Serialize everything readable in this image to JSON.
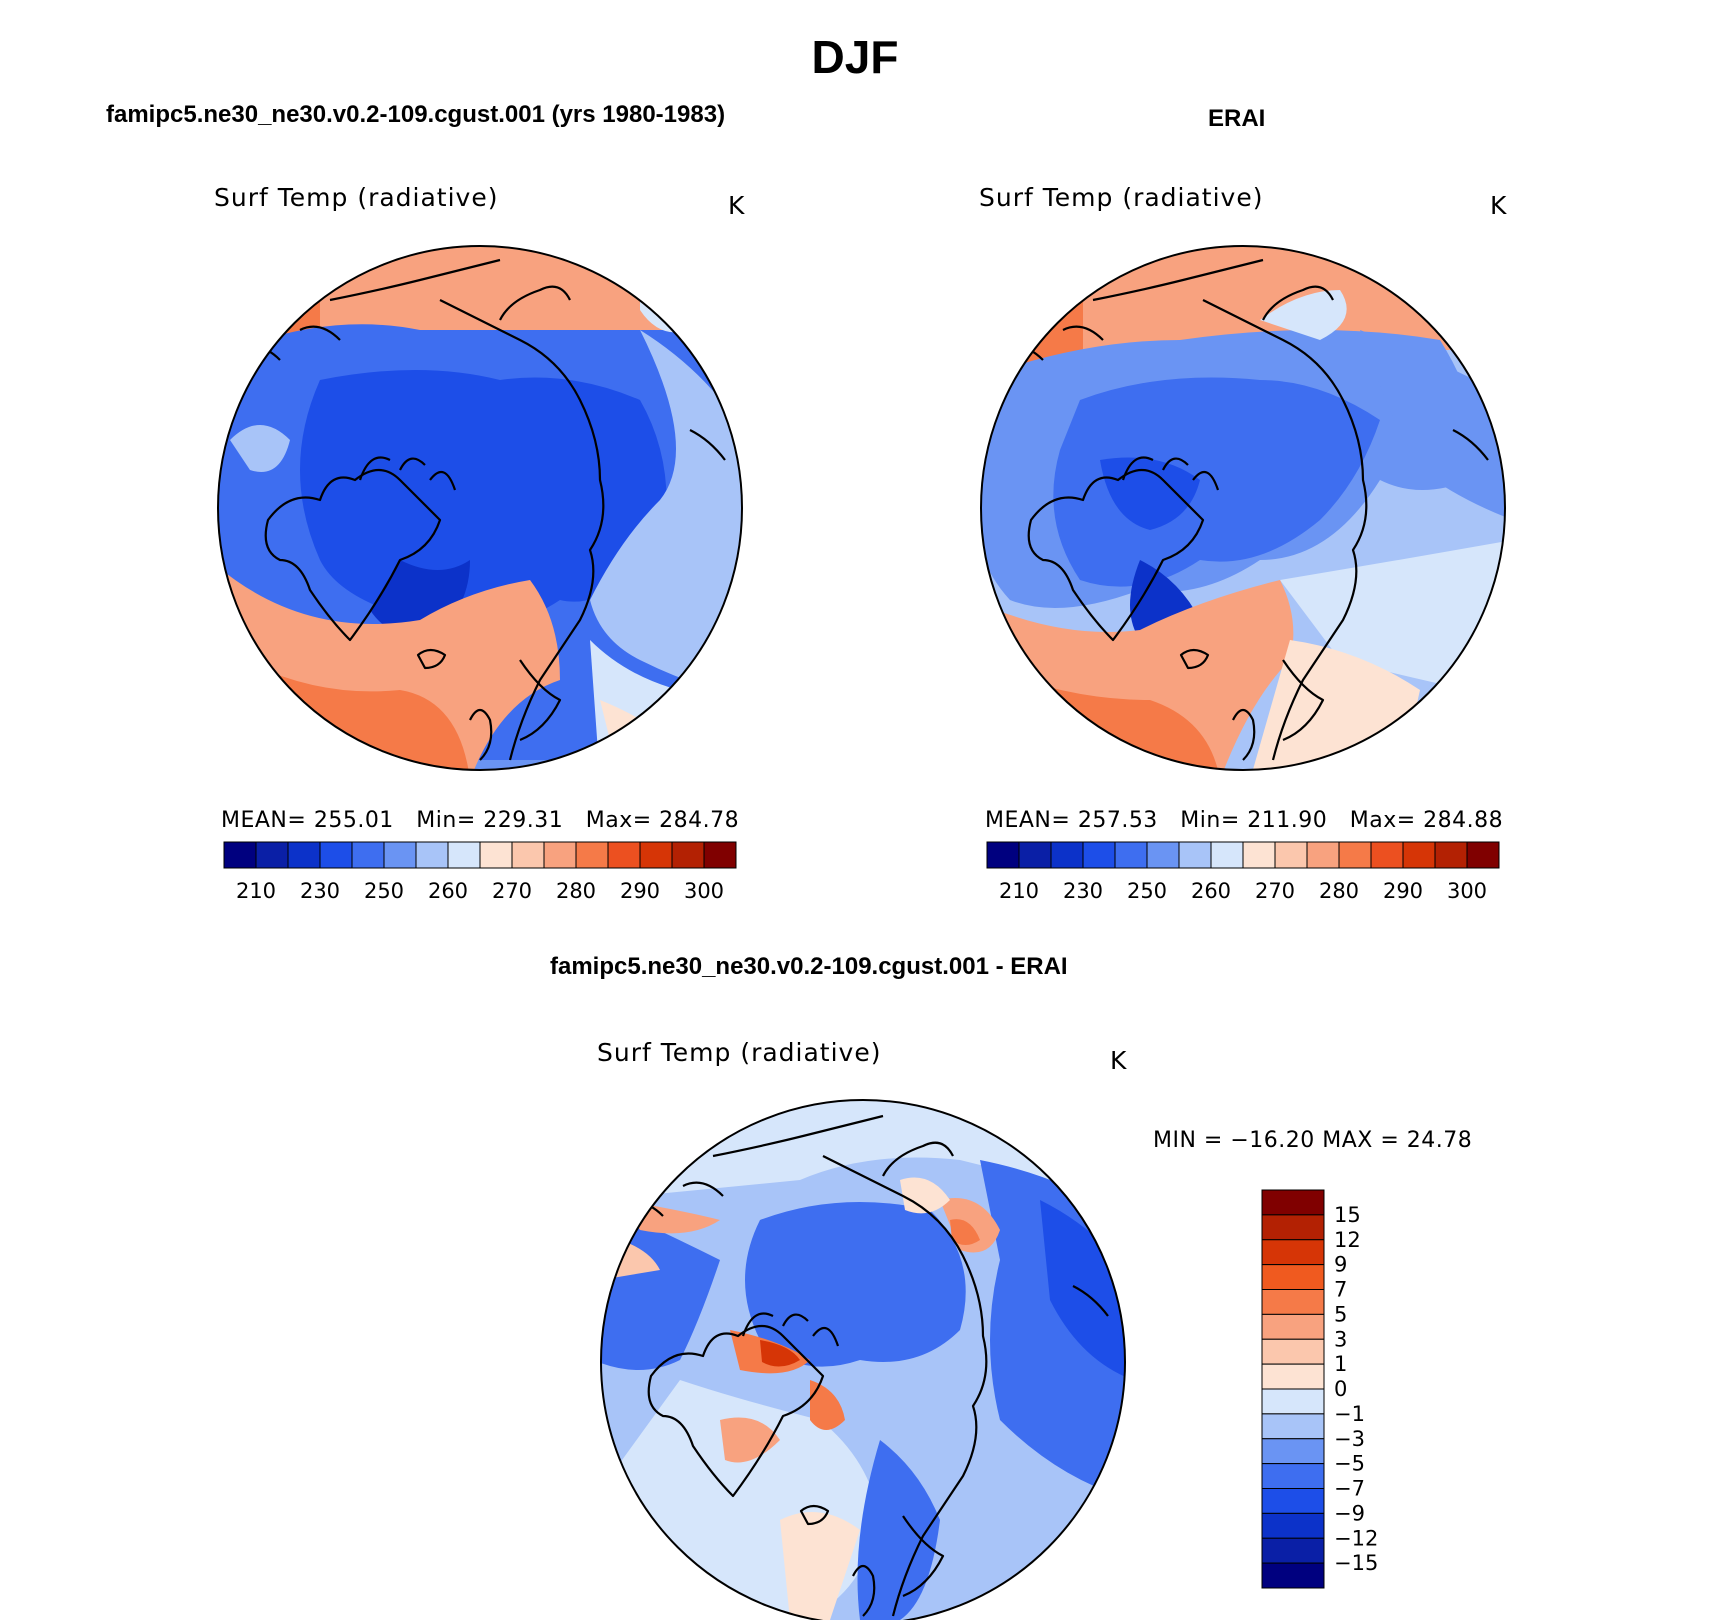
{
  "figure": {
    "main_title": "DJF"
  },
  "panels": {
    "model": {
      "case_title": "famipc5.ne30_ne30.v0.2-109.cgust.001 (yrs 1980-1983)",
      "plot_title": "Surf Temp (radiative)",
      "units": "K",
      "stats": {
        "mean_label": "MEAN=",
        "mean": "255.01",
        "min_label": "Min=",
        "min": "229.31",
        "max_label": "Max=",
        "max": "284.78"
      }
    },
    "obs": {
      "case_title": "ERAI",
      "plot_title": "Surf Temp (radiative)",
      "units": "K",
      "stats": {
        "mean_label": "MEAN=",
        "mean": "257.53",
        "min_label": "Min=",
        "min": "211.90",
        "max_label": "Max=",
        "max": "284.88"
      }
    },
    "diff": {
      "case_title": "famipc5.ne30_ne30.v0.2-109.cgust.001 - ERAI",
      "plot_title": "Surf Temp (radiative)",
      "units": "K",
      "minmax": "MIN = −16.20 MAX =   24.78"
    }
  },
  "colorbars": {
    "abs": {
      "ticks": [
        "210",
        "230",
        "250",
        "260",
        "270",
        "280",
        "290",
        "300"
      ],
      "colors": [
        "#00007f",
        "#0a1fa6",
        "#0c32c9",
        "#1d4ee8",
        "#3e6ef0",
        "#6a94f3",
        "#a8c4f8",
        "#d6e6fb",
        "#fde3d3",
        "#fbc7ad",
        "#f8a27f",
        "#f57a48",
        "#ec5020",
        "#d63506",
        "#b32103",
        "#800000"
      ]
    },
    "diff": {
      "ticks": [
        "15",
        "12",
        "9",
        "7",
        "5",
        "3",
        "1",
        "0",
        "−1",
        "−3",
        "−5",
        "−7",
        "−9",
        "−12",
        "−15"
      ],
      "colors": [
        "#800000",
        "#b32103",
        "#d63506",
        "#f05a1f",
        "#f57a48",
        "#f8a27f",
        "#fbc7ad",
        "#fde3d3",
        "#d6e6fb",
        "#a8c4f8",
        "#6a94f3",
        "#3e6ef0",
        "#1d4ee8",
        "#0c32c9",
        "#0a1fa6",
        "#00007f"
      ]
    }
  }
}
